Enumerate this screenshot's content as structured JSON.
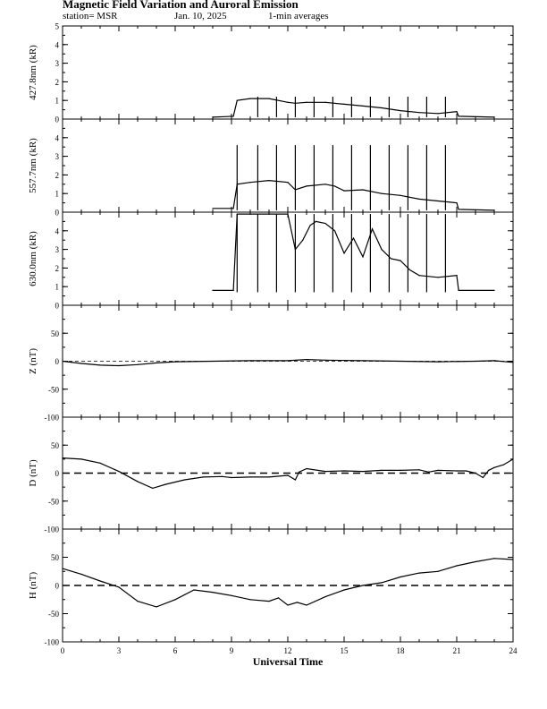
{
  "header": {
    "title": "Magnetic Field Variation and Auroral Emission",
    "station": "station= MSR",
    "date": "Jan. 10, 2025",
    "averaging": "1-min averages"
  },
  "chart_data": [
    {
      "type": "line",
      "ylabel": "427.8nm (kR)",
      "ylim": [
        0,
        5
      ],
      "yticks": [
        0,
        1,
        2,
        3,
        4,
        5
      ],
      "xlim": [
        0,
        24
      ],
      "x": [
        8.0,
        9.1,
        9.3,
        10,
        11,
        12,
        12.4,
        13,
        14,
        15,
        16,
        17,
        18,
        19,
        20,
        21,
        21.1,
        23.0
      ],
      "series": [
        {
          "values": [
            0.1,
            0.15,
            1.0,
            1.1,
            1.1,
            0.9,
            0.85,
            0.9,
            0.9,
            0.8,
            0.7,
            0.6,
            0.45,
            0.35,
            0.3,
            0.4,
            0.15,
            0.1
          ]
        }
      ],
      "spikes_x": [
        10.4,
        11.4,
        12.4,
        13.4,
        14.4,
        15.4,
        16.4,
        17.4,
        18.4,
        19.4,
        20.4
      ],
      "spike_range": [
        0.1,
        1.2
      ]
    },
    {
      "type": "line",
      "ylabel": "557.7nm (kR)",
      "ylim": [
        0,
        5
      ],
      "yticks": [
        0,
        1,
        2,
        3,
        4
      ],
      "xlim": [
        0,
        24
      ],
      "x": [
        8.0,
        9.1,
        9.3,
        10,
        11,
        12,
        12.4,
        13,
        14,
        14.5,
        15,
        16,
        17,
        18,
        19,
        20,
        21,
        21.1,
        23.0
      ],
      "series": [
        {
          "values": [
            0.2,
            0.2,
            1.5,
            1.6,
            1.7,
            1.6,
            1.2,
            1.4,
            1.5,
            1.4,
            1.15,
            1.2,
            1.0,
            0.9,
            0.7,
            0.6,
            0.5,
            0.15,
            0.1
          ]
        }
      ],
      "spikes_x": [
        9.3,
        10.4,
        11.4,
        12.4,
        13.4,
        14.4,
        15.4,
        16.4,
        17.4,
        18.4,
        19.4,
        20.4
      ],
      "spike_range": [
        0.1,
        3.6
      ]
    },
    {
      "type": "line",
      "ylabel": "630.0nm (kR)",
      "ylim": [
        0,
        5
      ],
      "yticks": [
        0,
        1,
        2,
        3,
        4
      ],
      "xlim": [
        0,
        24
      ],
      "x": [
        8.0,
        9.1,
        9.3,
        10,
        11,
        12,
        12.4,
        12.8,
        13.2,
        13.5,
        14,
        14.5,
        15,
        15.5,
        16,
        16.5,
        17,
        17.5,
        18,
        18.5,
        19,
        20,
        21,
        21.1,
        23.0
      ],
      "series": [
        {
          "values": [
            0.8,
            0.8,
            4.9,
            4.9,
            4.9,
            4.9,
            3.0,
            3.5,
            4.3,
            4.5,
            4.4,
            4.0,
            2.8,
            3.6,
            2.6,
            4.1,
            3.0,
            2.5,
            2.4,
            1.9,
            1.6,
            1.5,
            1.6,
            0.8,
            0.8
          ]
        }
      ],
      "spikes_x": [
        9.3,
        10.4,
        11.4,
        12.4,
        13.4,
        14.4,
        15.4,
        16.4,
        17.4,
        18.4,
        19.4,
        20.4
      ],
      "spike_range": [
        0.7,
        4.9
      ]
    },
    {
      "type": "line",
      "ylabel": "Z (nT)",
      "ylim": [
        -100,
        100
      ],
      "yticks": [
        -100,
        -50,
        0,
        50
      ],
      "xlim": [
        0,
        24
      ],
      "baseline": 0,
      "baseline_style": "thin-dashed",
      "x": [
        0,
        1,
        2,
        3,
        4,
        5,
        6,
        8,
        10,
        12,
        13,
        14,
        16,
        18,
        20,
        22,
        23,
        24
      ],
      "series": [
        {
          "values": [
            0,
            -4,
            -7,
            -8,
            -6,
            -3,
            -1,
            0,
            1,
            1,
            3,
            2,
            1,
            0,
            -1,
            0,
            1,
            -2
          ]
        }
      ]
    },
    {
      "type": "line",
      "ylabel": "D (nT)",
      "ylim": [
        -100,
        100
      ],
      "yticks": [
        -100,
        -50,
        0,
        50
      ],
      "xlim": [
        0,
        24
      ],
      "baseline": 0,
      "baseline_style": "dashed",
      "x": [
        0,
        1,
        2,
        3,
        4,
        4.8,
        5.5,
        6.5,
        7.5,
        8.5,
        9,
        10,
        11,
        12,
        12.4,
        12.6,
        13,
        14,
        15,
        16,
        17,
        18,
        19,
        19.5,
        20,
        21,
        21.5,
        22,
        22.4,
        22.7,
        23,
        23.5,
        24
      ],
      "series": [
        {
          "values": [
            27,
            25,
            18,
            3,
            -15,
            -27,
            -20,
            -12,
            -7,
            -6,
            -8,
            -7,
            -7,
            -4,
            -12,
            2,
            8,
            3,
            4,
            3,
            5,
            5,
            6,
            2,
            5,
            4,
            4,
            0,
            -8,
            5,
            10,
            15,
            25
          ]
        }
      ]
    },
    {
      "type": "line",
      "ylabel": "H (nT)",
      "ylim": [
        -100,
        100
      ],
      "yticks": [
        -100,
        -50,
        0,
        50
      ],
      "xlim": [
        0,
        24
      ],
      "baseline": 0,
      "baseline_style": "dashed",
      "x": [
        0,
        1,
        2,
        3,
        4,
        5,
        6,
        7,
        8,
        9,
        10,
        11,
        11.5,
        12,
        12.5,
        13,
        14,
        15,
        16,
        17,
        18,
        19,
        20,
        21,
        22,
        23,
        24
      ],
      "series": [
        {
          "values": [
            30,
            20,
            8,
            -3,
            -28,
            -38,
            -25,
            -8,
            -12,
            -18,
            -25,
            -28,
            -22,
            -35,
            -30,
            -35,
            -20,
            -8,
            0,
            5,
            15,
            22,
            25,
            35,
            42,
            48,
            46
          ]
        }
      ]
    }
  ],
  "xaxis": {
    "label": "Universal Time",
    "ticks": [
      0,
      3,
      6,
      9,
      12,
      15,
      18,
      21,
      24
    ]
  }
}
